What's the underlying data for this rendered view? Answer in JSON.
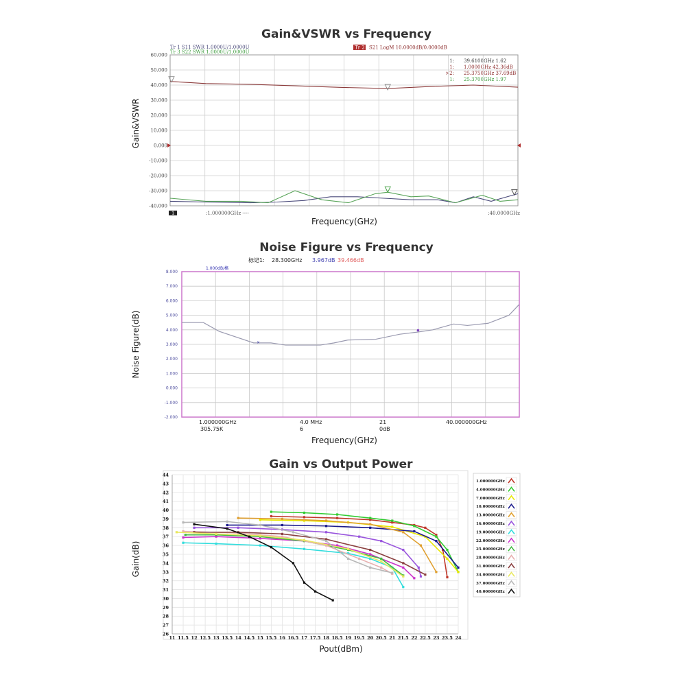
{
  "chart_data": [
    {
      "type": "line",
      "title": "Gain&VSWR vs Frequency",
      "xlabel": "Frequency(GHz)",
      "ylabel": "Gain&VSWR",
      "xlim": [
        1,
        40
      ],
      "ylim": [
        -40,
        60
      ],
      "grid": true,
      "y_tick_labels": [
        "60.000",
        "50.000",
        "40.000",
        "30.000",
        "20.000",
        "10.000",
        "0.000",
        "-10.000",
        "-20.000",
        "-30.000",
        "-40.000"
      ],
      "trace_labels": {
        "tr1": "Tr 1  S11 SWR 1.0000U/1.0000U",
        "tr3": "Tr 3  S22 SWR 1.0000U/1.0000U",
        "tr2_badge": "Tr 2",
        "tr2": "S21 LogM 10.0000dB/0.0000dB"
      },
      "marker_table": [
        {
          "idx": "1:",
          "value": "39.6100GHz 1.62",
          "color": "#333333"
        },
        {
          "idx": "1:",
          "value": "1.0000GHz 42.36dB",
          "color": "#8b2a2a"
        },
        {
          "idx": ">2:",
          "value": "25.3750GHz 37.69dB",
          "color": "#8b2a2a"
        },
        {
          "idx": "1:",
          "value": "25.3700GHz 1.97",
          "color": "#3a9a3a"
        }
      ],
      "start_label": ":1.000000GHz ----",
      "stop_label": ":40.0000GHz",
      "channel_badge": "1",
      "series": [
        {
          "name": "S21",
          "color": "#8b3a3a",
          "x": [
            1,
            5,
            10,
            15,
            20,
            25.4,
            30,
            35,
            40
          ],
          "y": [
            42.4,
            41,
            40.5,
            39.5,
            38.5,
            37.7,
            39,
            40,
            38.6
          ]
        },
        {
          "name": "S11",
          "color": "#4a4a7a",
          "x": [
            1,
            5,
            10,
            13,
            16,
            19,
            22,
            25,
            28,
            31,
            33,
            35,
            37,
            40
          ],
          "y": [
            -37,
            -37.5,
            -38,
            -37.5,
            -36.5,
            -34,
            -34,
            -35,
            -36,
            -36,
            -38,
            -34,
            -37,
            -32
          ]
        },
        {
          "name": "S22",
          "color": "#5aa55a",
          "x": [
            1,
            5,
            9,
            12,
            15,
            18,
            21,
            24,
            25.4,
            28,
            30,
            33,
            36,
            38,
            40
          ],
          "y": [
            -35,
            -37,
            -37,
            -38,
            -30,
            -36,
            -38,
            -32,
            -31,
            -34,
            -33.5,
            -38,
            -33,
            -37,
            -36
          ]
        }
      ]
    },
    {
      "type": "line",
      "title": "Noise Figure vs Frequency",
      "xlabel": "Frequency(GHz)",
      "ylabel": "Noise Figure(dB)",
      "xlim": [
        1,
        40
      ],
      "ylim": [
        -2,
        8
      ],
      "grid": true,
      "y_tick_labels": [
        "8.000",
        "7.000",
        "6.000",
        "5.000",
        "4.000",
        "3.000",
        "2.000",
        "1.000",
        "0.000",
        "-1.000",
        "-2.000"
      ],
      "scale_label": "1.000dB/格",
      "marker_header": {
        "label": "标记1:",
        "freq": "28.300GHz",
        "nf": "3.967dB",
        "gain": "39.466dB"
      },
      "footer": {
        "start": "1.000000GHz",
        "start_sub": "305.75K",
        "bw": "4.0  MHz",
        "bw_sub": "6",
        "avg": "21",
        "avg_sub": "0dB",
        "stop": "40.000000GHz"
      },
      "series": [
        {
          "name": "Noise Figure",
          "color": "#9a9ab0",
          "x": [
            1,
            3.5,
            5.3,
            9.3,
            11.3,
            13,
            17,
            18.6,
            20.2,
            23.4,
            26.2,
            28.3,
            30,
            32.4,
            34,
            36.4,
            38.8,
            40
          ],
          "y": [
            4.5,
            4.5,
            3.9,
            3.1,
            3.1,
            2.95,
            2.95,
            3.1,
            3.3,
            3.35,
            3.7,
            3.85,
            4.0,
            4.4,
            4.3,
            4.45,
            5.0,
            5.75
          ]
        }
      ]
    },
    {
      "type": "line",
      "title": "Gain vs Output Power",
      "xlabel": "Pout(dBm)",
      "ylabel": "Gain(dB)",
      "xlim": [
        11,
        24
      ],
      "ylim": [
        26,
        44
      ],
      "x_ticks": [
        11,
        11.5,
        12,
        12.5,
        13,
        13.5,
        14,
        14.5,
        15,
        15.5,
        16,
        16.5,
        17,
        17.5,
        18,
        18.5,
        19,
        19.5,
        20,
        20.5,
        21,
        21.5,
        22,
        22.5,
        23,
        23.5,
        24
      ],
      "y_ticks": [
        26,
        27,
        28,
        29,
        30,
        31,
        32,
        33,
        34,
        35,
        36,
        37,
        38,
        39,
        40,
        41,
        42,
        43,
        44
      ],
      "grid": true,
      "legend": "right",
      "series": [
        {
          "name": "1.000000GHz",
          "color": "#c0392b",
          "x": [
            15.5,
            17,
            18.5,
            20,
            21,
            22,
            22.5,
            23,
            23.3,
            23.5
          ],
          "y": [
            39.3,
            39.2,
            39.1,
            38.9,
            38.6,
            38.3,
            38,
            37.2,
            35.5,
            32.4
          ]
        },
        {
          "name": "4.000000GHz",
          "color": "#33cc33",
          "x": [
            15.5,
            17,
            18.5,
            20,
            21,
            22,
            23,
            23.5,
            24
          ],
          "y": [
            39.8,
            39.7,
            39.5,
            39.1,
            38.8,
            38.2,
            37,
            35.5,
            33
          ]
        },
        {
          "name": "7.000000GHz",
          "color": "#e8e800",
          "x": [
            15,
            17,
            19,
            21,
            22.5,
            23.5,
            24
          ],
          "y": [
            38.9,
            38.8,
            38.6,
            38.1,
            37,
            34.5,
            33
          ]
        },
        {
          "name": "10.00000GHz",
          "color": "#1a1a8c",
          "x": [
            13.5,
            16,
            18,
            20,
            22,
            23,
            24
          ],
          "y": [
            38.3,
            38.3,
            38.2,
            38,
            37.6,
            36.5,
            33.5
          ]
        },
        {
          "name": "13.00000GHz",
          "color": "#e0a030",
          "x": [
            14,
            16,
            18,
            20,
            21.5,
            22.3,
            23
          ],
          "y": [
            39.1,
            39,
            38.8,
            38.4,
            37.5,
            36,
            33
          ]
        },
        {
          "name": "16.00000GHz",
          "color": "#9955dd",
          "x": [
            12,
            14,
            16,
            18,
            19.5,
            20.5,
            21.5,
            22.2,
            22.3
          ],
          "y": [
            38,
            38,
            37.8,
            37.5,
            37,
            36.5,
            35.5,
            33.5,
            32.5
          ]
        },
        {
          "name": "19.00000GHz",
          "color": "#33dddd",
          "x": [
            11.5,
            13,
            15,
            17,
            19,
            20,
            21,
            21.5
          ],
          "y": [
            36.3,
            36.2,
            36,
            35.6,
            35.1,
            34.5,
            33.5,
            31.3
          ]
        },
        {
          "name": "22.00000GHz",
          "color": "#cc33cc",
          "x": [
            11.5,
            13,
            15,
            17,
            18.5,
            20,
            21.5,
            22
          ],
          "y": [
            36.9,
            37,
            36.8,
            36.5,
            36,
            35,
            33.5,
            32.3
          ]
        },
        {
          "name": "25.00000GHz",
          "color": "#44bb44",
          "x": [
            11.6,
            13,
            15,
            17,
            19,
            20.5,
            21.5
          ],
          "y": [
            37.2,
            37.2,
            37,
            36.5,
            35.5,
            34.5,
            32.6
          ]
        },
        {
          "name": "28.00000GHz",
          "color": "#e8b0b0",
          "x": [
            11.5,
            14,
            16,
            18,
            19.5,
            20.5,
            21
          ],
          "y": [
            37.6,
            37.4,
            37,
            36,
            34.5,
            33.5,
            32.8
          ]
        },
        {
          "name": "31.00000GHz",
          "color": "#8b4040",
          "x": [
            12,
            14,
            16,
            18,
            20,
            21.5,
            22.5
          ],
          "y": [
            37.5,
            37.5,
            37.3,
            36.7,
            35.5,
            34,
            32.7
          ]
        },
        {
          "name": "34.00000GHz",
          "color": "#e8e860",
          "x": [
            11.2,
            13,
            15,
            17,
            19,
            20.5,
            21.5
          ],
          "y": [
            37.5,
            37.3,
            37.1,
            36.6,
            35.6,
            34.2,
            32.5
          ]
        },
        {
          "name": "37.00000GHz",
          "color": "#b8b8b8",
          "x": [
            11.5,
            13.5,
            15,
            16.5,
            18,
            19,
            20,
            21
          ],
          "y": [
            38.6,
            38.7,
            38.3,
            37.5,
            36.5,
            34.5,
            33.5,
            32.9
          ]
        },
        {
          "name": "40.00000GHz",
          "color": "#111111",
          "x": [
            12,
            13.5,
            14.5,
            15.5,
            16.5,
            17,
            17.5,
            18.3
          ],
          "y": [
            38.4,
            37.9,
            37,
            35.8,
            34,
            31.8,
            30.8,
            29.8
          ]
        }
      ]
    }
  ]
}
